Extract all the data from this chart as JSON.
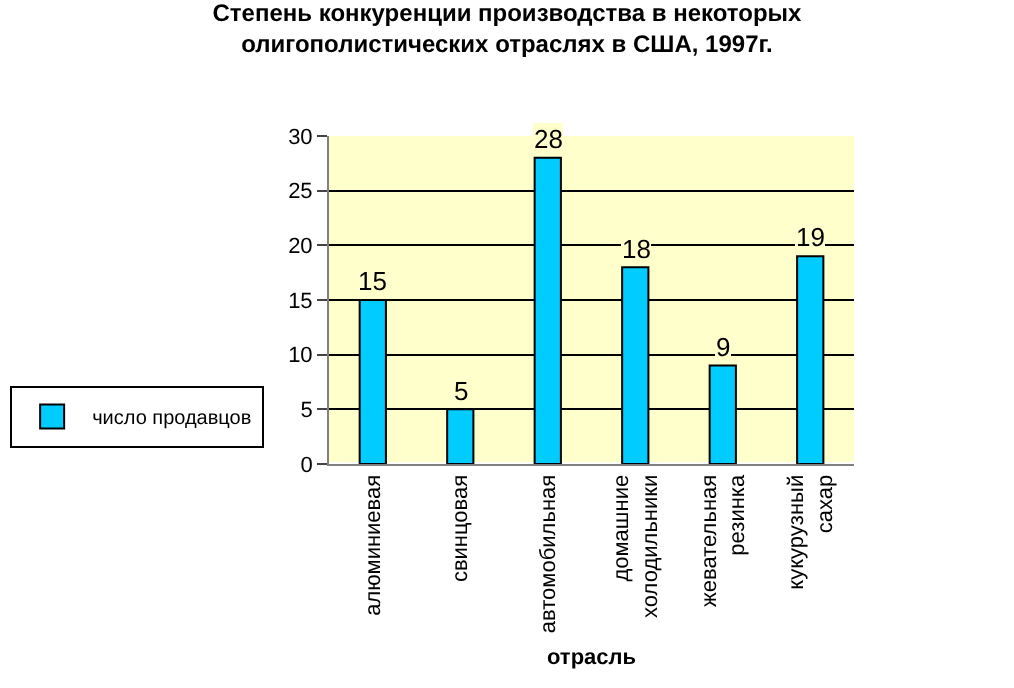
{
  "chart_data": {
    "type": "bar",
    "title": "Степень конкуренции производства в некоторых олигополистических отраслях в США, 1997г.",
    "xlabel": "отрасль",
    "categories": [
      "алюминиевая",
      "свинцовая",
      "автомобильная",
      "домашние холодильники",
      "жевательная резинка",
      "кукурузный сахар"
    ],
    "series": [
      {
        "name": "число продавцов",
        "color": "#00ccff",
        "values": [
          15,
          5,
          28,
          18,
          9,
          19
        ]
      }
    ],
    "ylim": [
      0,
      30
    ],
    "yticks": [
      0,
      5,
      10,
      15,
      20,
      25,
      30
    ],
    "grid": "y",
    "legend": "left",
    "data_labels": true
  }
}
